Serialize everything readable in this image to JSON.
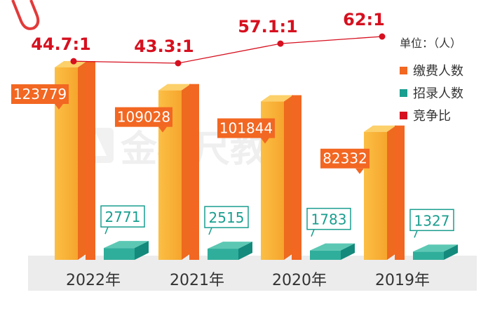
{
  "chart_data": {
    "type": "bar",
    "categories": [
      "2022年",
      "2021年",
      "2020年",
      "2019年"
    ],
    "unit_label": "单位：（人）",
    "series": [
      {
        "name": "缴费人数",
        "values": [
          123779,
          109028,
          101844,
          82332
        ],
        "color": "#f26722",
        "front_color": "#f9b43a"
      },
      {
        "name": "招录人数",
        "values": [
          2771,
          2515,
          1783,
          1327
        ],
        "color": "#1a9e8f",
        "front_color": "#4fbfab"
      },
      {
        "name": "竞争比",
        "values": [
          44.7,
          43.3,
          57.1,
          62.1
        ],
        "labels": [
          "44.7:1",
          "43.3:1",
          "57.1:1",
          "62:1"
        ],
        "color": "#d6101f"
      }
    ],
    "ylim": [
      0,
      140000
    ],
    "watermark": "金标尺教育"
  }
}
